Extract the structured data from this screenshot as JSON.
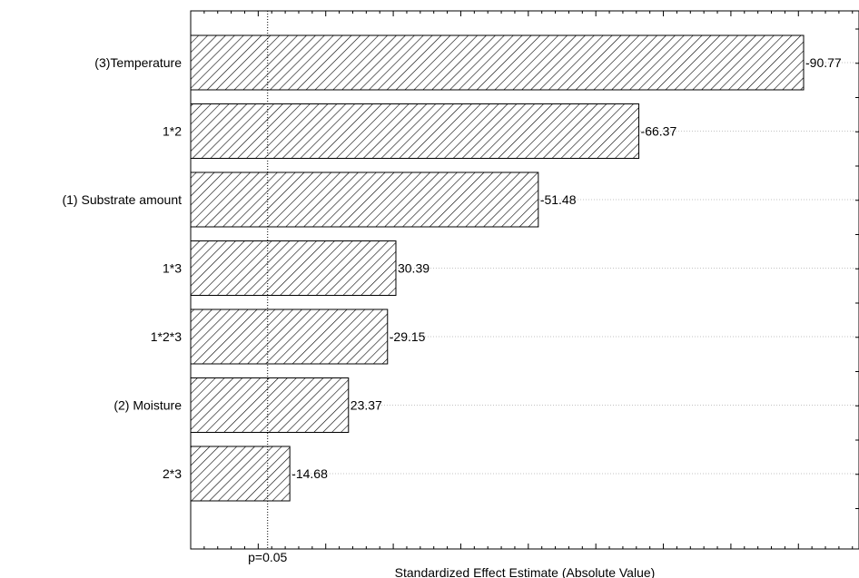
{
  "chart_data": {
    "type": "bar",
    "orientation": "horizontal",
    "title": "",
    "xlabel": "Standardized Effect Estimate (Absolute Value)",
    "ylabel": "",
    "xlim": [
      0,
      100
    ],
    "grid": true,
    "categories": [
      "(3)Temperature",
      "1*2",
      "(1) Substrate amount",
      "1*3",
      "1*2*3",
      "(2) Moisture",
      "2*3"
    ],
    "values": [
      90.77,
      66.37,
      51.48,
      30.39,
      29.15,
      23.37,
      14.68
    ],
    "value_labels": [
      "-90.77",
      "-66.37",
      "-51.48",
      "30.39",
      "-29.15",
      "23.37",
      "-14.68"
    ],
    "reference_line": {
      "label": "p=0.05",
      "value": 1.98
    },
    "fill": "diagonal-hatch",
    "bar_color": "#000000"
  }
}
